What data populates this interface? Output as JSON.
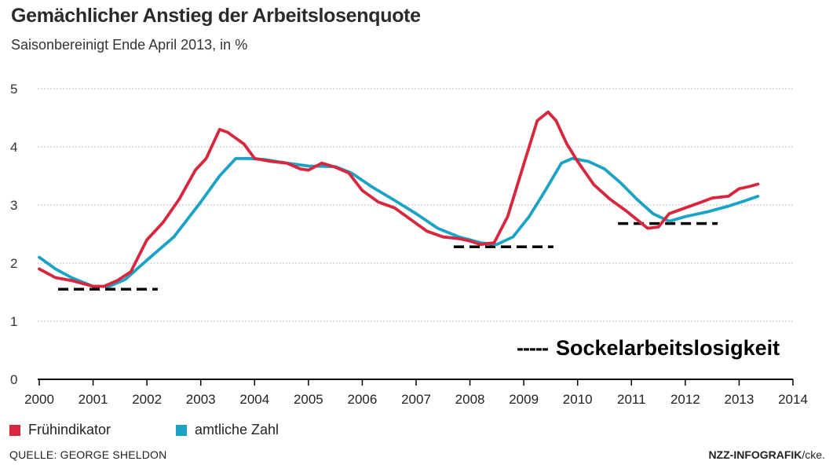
{
  "header": {
    "title": "Gemächlicher Anstieg der Arbeitslosenquote",
    "subtitle": "Saisonbereinigt Ende April 2013, in %"
  },
  "footer": {
    "source": "QUELLE: GEORGE SHELDON",
    "credit": "NZZ-INFOGRAFIK",
    "credit_suffix": "/cke."
  },
  "annotation": {
    "dash": "-----",
    "label": "Sockelarbeitslosigkeit"
  },
  "colors": {
    "fruehindikator": "#d7263d",
    "amtlich": "#1aa3c4",
    "grid": "#bbbbbb",
    "baseline": "#000000"
  },
  "chart_data": {
    "type": "line",
    "title": "Gemächlicher Anstieg der Arbeitslosenquote",
    "subtitle": "Saisonbereinigt Ende April 2013, in %",
    "xlim": [
      2000,
      2014
    ],
    "ylim": [
      0,
      5
    ],
    "x_ticks": [
      2000,
      2001,
      2002,
      2003,
      2004,
      2005,
      2006,
      2007,
      2008,
      2009,
      2010,
      2011,
      2012,
      2013,
      2014
    ],
    "y_ticks": [
      0,
      1,
      2,
      3,
      4,
      5
    ],
    "grid": true,
    "legend_position": "bottom-left",
    "series": [
      {
        "name": "Frühindikator",
        "color": "#d7263d",
        "points": [
          [
            2000.0,
            1.9
          ],
          [
            2000.3,
            1.75
          ],
          [
            2000.6,
            1.7
          ],
          [
            2001.0,
            1.6
          ],
          [
            2001.2,
            1.6
          ],
          [
            2001.45,
            1.7
          ],
          [
            2001.7,
            1.85
          ],
          [
            2002.0,
            2.4
          ],
          [
            2002.3,
            2.7
          ],
          [
            2002.6,
            3.1
          ],
          [
            2002.9,
            3.6
          ],
          [
            2003.1,
            3.8
          ],
          [
            2003.35,
            4.3
          ],
          [
            2003.5,
            4.25
          ],
          [
            2003.8,
            4.05
          ],
          [
            2004.0,
            3.8
          ],
          [
            2004.3,
            3.75
          ],
          [
            2004.6,
            3.72
          ],
          [
            2004.85,
            3.62
          ],
          [
            2005.0,
            3.6
          ],
          [
            2005.25,
            3.72
          ],
          [
            2005.5,
            3.65
          ],
          [
            2005.75,
            3.55
          ],
          [
            2006.0,
            3.25
          ],
          [
            2006.3,
            3.05
          ],
          [
            2006.6,
            2.95
          ],
          [
            2006.9,
            2.75
          ],
          [
            2007.2,
            2.55
          ],
          [
            2007.5,
            2.45
          ],
          [
            2007.8,
            2.42
          ],
          [
            2008.0,
            2.38
          ],
          [
            2008.2,
            2.32
          ],
          [
            2008.45,
            2.35
          ],
          [
            2008.7,
            2.8
          ],
          [
            2009.0,
            3.7
          ],
          [
            2009.25,
            4.45
          ],
          [
            2009.45,
            4.6
          ],
          [
            2009.6,
            4.45
          ],
          [
            2009.8,
            4.05
          ],
          [
            2010.0,
            3.75
          ],
          [
            2010.3,
            3.35
          ],
          [
            2010.6,
            3.1
          ],
          [
            2010.9,
            2.9
          ],
          [
            2011.1,
            2.75
          ],
          [
            2011.3,
            2.6
          ],
          [
            2011.5,
            2.62
          ],
          [
            2011.7,
            2.85
          ],
          [
            2012.0,
            2.95
          ],
          [
            2012.3,
            3.05
          ],
          [
            2012.5,
            3.12
          ],
          [
            2012.8,
            3.15
          ],
          [
            2013.0,
            3.28
          ],
          [
            2013.2,
            3.32
          ],
          [
            2013.35,
            3.36
          ]
        ]
      },
      {
        "name": "amtliche Zahl",
        "color": "#1aa3c4",
        "points": [
          [
            2000.0,
            2.1
          ],
          [
            2000.3,
            1.9
          ],
          [
            2000.6,
            1.75
          ],
          [
            2001.0,
            1.6
          ],
          [
            2001.3,
            1.6
          ],
          [
            2001.6,
            1.72
          ],
          [
            2002.0,
            2.05
          ],
          [
            2002.5,
            2.45
          ],
          [
            2003.0,
            3.05
          ],
          [
            2003.35,
            3.5
          ],
          [
            2003.65,
            3.8
          ],
          [
            2003.9,
            3.8
          ],
          [
            2004.2,
            3.78
          ],
          [
            2004.6,
            3.72
          ],
          [
            2005.0,
            3.67
          ],
          [
            2005.5,
            3.66
          ],
          [
            2005.8,
            3.55
          ],
          [
            2006.2,
            3.3
          ],
          [
            2006.6,
            3.08
          ],
          [
            2007.0,
            2.85
          ],
          [
            2007.4,
            2.6
          ],
          [
            2007.8,
            2.45
          ],
          [
            2008.2,
            2.35
          ],
          [
            2008.5,
            2.32
          ],
          [
            2008.8,
            2.45
          ],
          [
            2009.1,
            2.8
          ],
          [
            2009.4,
            3.25
          ],
          [
            2009.7,
            3.72
          ],
          [
            2009.9,
            3.8
          ],
          [
            2010.2,
            3.75
          ],
          [
            2010.5,
            3.62
          ],
          [
            2010.8,
            3.38
          ],
          [
            2011.1,
            3.1
          ],
          [
            2011.4,
            2.85
          ],
          [
            2011.7,
            2.72
          ],
          [
            2012.0,
            2.8
          ],
          [
            2012.4,
            2.88
          ],
          [
            2012.8,
            2.98
          ],
          [
            2013.1,
            3.07
          ],
          [
            2013.35,
            3.15
          ]
        ]
      }
    ],
    "reference_lines": [
      {
        "x": [
          2000.35,
          2002.2
        ],
        "y": 1.55
      },
      {
        "x": [
          2007.7,
          2009.55
        ],
        "y": 2.28
      },
      {
        "x": [
          2010.75,
          2012.6
        ],
        "y": 2.68
      }
    ]
  }
}
